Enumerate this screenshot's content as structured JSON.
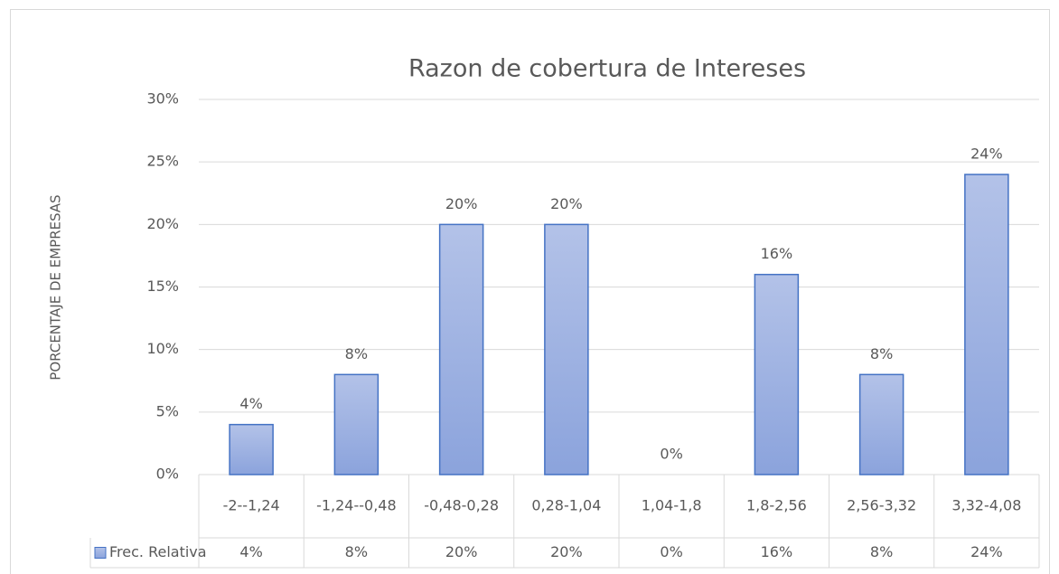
{
  "chart_data": {
    "type": "bar",
    "title": "Razon de cobertura de Intereses",
    "y_label": "PORCENTAJE DE EMPRESAS",
    "categories": [
      "-2--1,24",
      "-1,24--0,48",
      "-0,48-0,28",
      "0,28-1,04",
      "1,04-1,8",
      "1,8-2,56",
      "2,56-3,32",
      "3,32-4,08"
    ],
    "series": [
      {
        "name": "Frec. Relativa",
        "color": "#4472c4",
        "values": [
          4,
          8,
          20,
          20,
          0,
          16,
          8,
          24
        ],
        "value_labels": [
          "4%",
          "8%",
          "20%",
          "20%",
          "0%",
          "16%",
          "8%",
          "24%"
        ]
      }
    ],
    "ylim": [
      0,
      30
    ],
    "yticks": [
      {
        "value": 0,
        "label": "0%"
      },
      {
        "value": 5,
        "label": "5%"
      },
      {
        "value": 10,
        "label": "10%"
      },
      {
        "value": 15,
        "label": "15%"
      },
      {
        "value": 20,
        "label": "20%"
      },
      {
        "value": 25,
        "label": "25%"
      },
      {
        "value": 30,
        "label": "30%"
      }
    ],
    "grid": true,
    "data_table": true
  }
}
